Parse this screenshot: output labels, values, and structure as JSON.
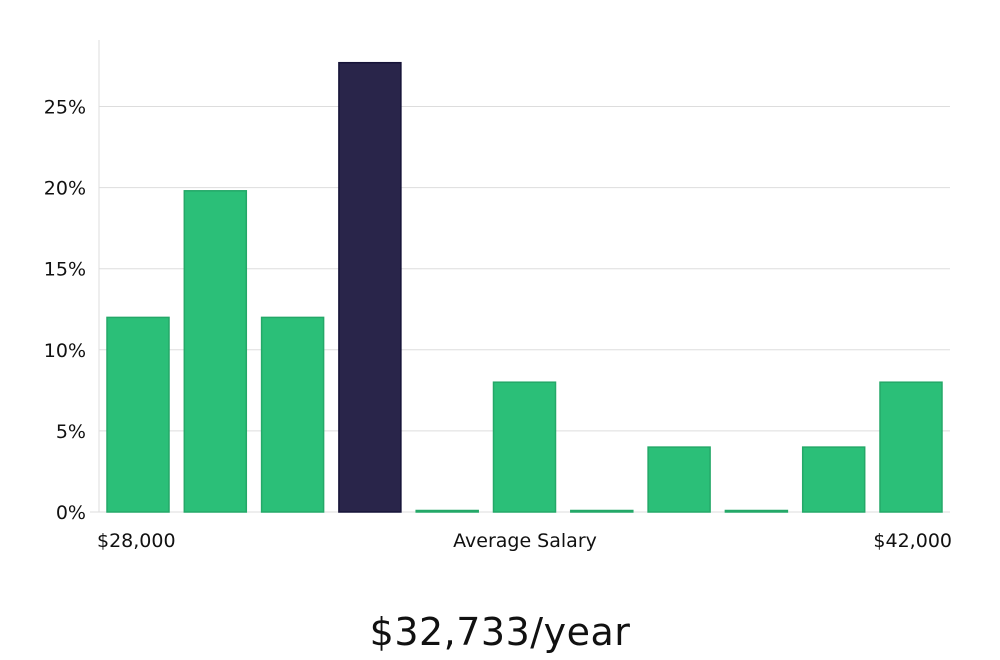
{
  "chart_data": {
    "type": "bar",
    "title": "",
    "xlabel": "Average Salary",
    "ylabel": "",
    "x_min_label": "$28,000",
    "x_max_label": "$42,000",
    "ylim": [
      0,
      29
    ],
    "yticks": [
      0,
      5,
      10,
      15,
      20,
      25
    ],
    "ytick_labels": [
      "0%",
      "5%",
      "10%",
      "15%",
      "20%",
      "25%"
    ],
    "values": [
      12,
      19.8,
      12,
      27.7,
      0,
      8,
      0,
      4,
      0,
      4,
      8
    ],
    "highlight_index": 3,
    "colors": {
      "bar": "#2bbf78",
      "bar_stroke": "#24a868",
      "highlight": "#29254a",
      "highlight_stroke": "#161338",
      "grid": "#dddddd",
      "axis": "#dddddd"
    },
    "grid": true
  },
  "salary_text": "$32,733/year"
}
